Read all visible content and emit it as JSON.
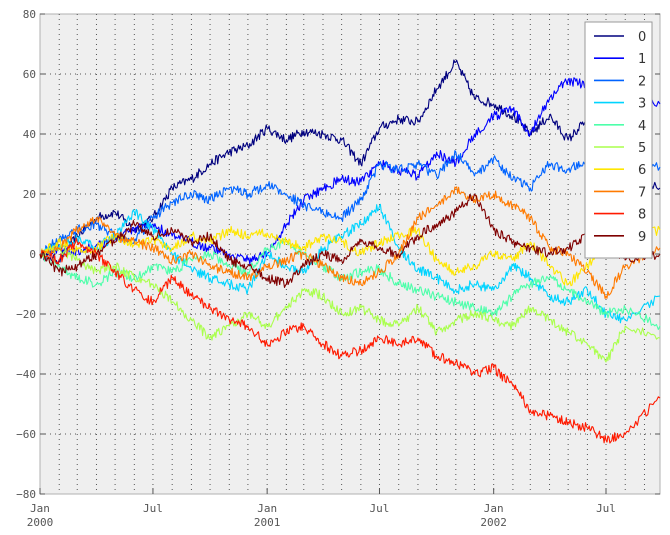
{
  "chart_data": {
    "type": "line",
    "title": "",
    "xlabel": "",
    "ylabel": "",
    "xlim": [
      "2000-01-01",
      "2002-09-26"
    ],
    "ylim": [
      -80,
      80
    ],
    "grid": true,
    "legend_position": "top-right",
    "y_ticks": [
      -80,
      -60,
      -40,
      -20,
      0,
      20,
      40,
      60,
      80
    ],
    "x_ticks": [
      {
        "date": "2000-01-01",
        "label": [
          "Jan",
          "2000"
        ]
      },
      {
        "date": "2000-07-01",
        "label": [
          "Jul"
        ]
      },
      {
        "date": "2001-01-01",
        "label": [
          "Jan",
          "2001"
        ]
      },
      {
        "date": "2001-07-01",
        "label": [
          "Jul"
        ]
      },
      {
        "date": "2002-01-01",
        "label": [
          "Jan",
          "2002"
        ]
      },
      {
        "date": "2002-07-01",
        "label": [
          "Jul"
        ]
      }
    ],
    "x": [
      "2000-01-01",
      "2000-02-01",
      "2000-03-01",
      "2000-04-01",
      "2000-05-01",
      "2000-06-01",
      "2000-07-01",
      "2000-08-01",
      "2000-09-01",
      "2000-10-01",
      "2000-11-01",
      "2000-12-01",
      "2001-01-01",
      "2001-02-01",
      "2001-03-01",
      "2001-04-01",
      "2001-05-01",
      "2001-06-01",
      "2001-07-01",
      "2001-08-01",
      "2001-09-01",
      "2001-10-01",
      "2001-11-01",
      "2001-12-01",
      "2002-01-01",
      "2002-02-01",
      "2002-03-01",
      "2002-04-01",
      "2002-05-01",
      "2002-06-01",
      "2002-07-01",
      "2002-08-01",
      "2002-09-26"
    ],
    "series": [
      {
        "name": "0",
        "color": "#00007f",
        "values": [
          0,
          -2,
          6,
          12,
          14,
          8,
          12,
          22,
          25,
          30,
          34,
          36,
          42,
          38,
          41,
          40,
          38,
          30,
          42,
          45,
          44,
          55,
          64,
          52,
          50,
          46,
          40,
          46,
          38,
          45,
          32,
          28,
          22
        ]
      },
      {
        "name": "1",
        "color": "#0000ff",
        "values": [
          0,
          2,
          1,
          3,
          5,
          8,
          10,
          6,
          4,
          2,
          0,
          -2,
          0,
          10,
          18,
          22,
          25,
          24,
          30,
          28,
          26,
          34,
          30,
          40,
          46,
          48,
          40,
          52,
          58,
          56,
          60,
          54,
          50
        ]
      },
      {
        "name": "2",
        "color": "#0063ff",
        "values": [
          0,
          5,
          8,
          10,
          6,
          4,
          12,
          17,
          20,
          18,
          22,
          20,
          23,
          20,
          16,
          14,
          12,
          18,
          30,
          28,
          30,
          26,
          34,
          26,
          32,
          25,
          22,
          30,
          28,
          32,
          34,
          30,
          29
        ]
      },
      {
        "name": "3",
        "color": "#00d4ff",
        "values": [
          0,
          3,
          5,
          2,
          6,
          14,
          8,
          0,
          -5,
          -8,
          -10,
          -12,
          0,
          -4,
          -6,
          2,
          6,
          10,
          16,
          2,
          -5,
          -8,
          -12,
          -10,
          -12,
          -4,
          -8,
          -14,
          -16,
          -12,
          -20,
          -22,
          -14
        ]
      },
      {
        "name": "4",
        "color": "#4dffaa",
        "values": [
          0,
          -4,
          -8,
          -10,
          -6,
          -8,
          -4,
          -6,
          -2,
          0,
          -4,
          -6,
          2,
          4,
          0,
          -4,
          -8,
          -6,
          -5,
          -10,
          -12,
          -14,
          -16,
          -18,
          -20,
          -14,
          -10,
          -8,
          -12,
          -16,
          -20,
          -18,
          -24
        ]
      },
      {
        "name": "5",
        "color": "#aaff4d",
        "values": [
          0,
          2,
          -2,
          -6,
          -4,
          -8,
          -10,
          -16,
          -22,
          -28,
          -24,
          -20,
          -24,
          -18,
          -12,
          -14,
          -20,
          -18,
          -22,
          -24,
          -18,
          -26,
          -22,
          -20,
          -22,
          -24,
          -18,
          -22,
          -26,
          -30,
          -36,
          -24,
          -28
        ]
      },
      {
        "name": "6",
        "color": "#ffe600",
        "values": [
          0,
          4,
          1,
          2,
          6,
          3,
          5,
          2,
          6,
          4,
          8,
          6,
          7,
          4,
          2,
          6,
          4,
          0,
          4,
          6,
          8,
          -2,
          -6,
          -4,
          0,
          -2,
          4,
          -4,
          -10,
          -4,
          2,
          5,
          8
        ]
      },
      {
        "name": "7",
        "color": "#ff7a00",
        "values": [
          0,
          2,
          8,
          12,
          6,
          4,
          2,
          -2,
          0,
          -4,
          -6,
          -8,
          -4,
          -2,
          0,
          -4,
          -8,
          -10,
          -6,
          0,
          12,
          16,
          22,
          18,
          20,
          16,
          12,
          2,
          0,
          -6,
          -14,
          -4,
          2
        ]
      },
      {
        "name": "8",
        "color": "#ff1a00",
        "values": [
          0,
          -2,
          4,
          0,
          -6,
          -12,
          -16,
          -8,
          -14,
          -18,
          -22,
          -24,
          -30,
          -26,
          -24,
          -30,
          -34,
          -32,
          -28,
          -30,
          -28,
          -34,
          -36,
          -40,
          -38,
          -44,
          -52,
          -54,
          -56,
          -58,
          -62,
          -60,
          -48
        ]
      },
      {
        "name": "9",
        "color": "#7f0000",
        "values": [
          0,
          -6,
          -4,
          0,
          4,
          10,
          6,
          8,
          4,
          6,
          -2,
          -4,
          -8,
          -10,
          -4,
          0,
          -2,
          4,
          2,
          0,
          6,
          10,
          14,
          20,
          8,
          4,
          2,
          0,
          2,
          6,
          4,
          -2,
          0
        ]
      }
    ]
  }
}
